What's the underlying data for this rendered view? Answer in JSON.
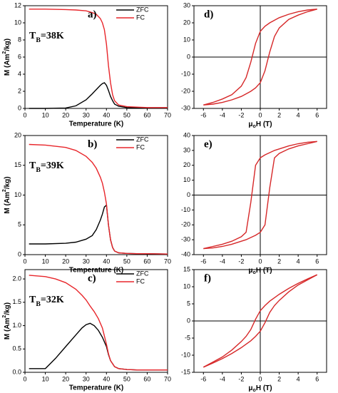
{
  "chart_data": [
    {
      "type": "line",
      "label": "a)",
      "annotation": [
        "T",
        "B",
        "=38K"
      ],
      "xlabel": "Temperature (K)",
      "ylabel": [
        "M (Am",
        "2",
        "/kg)"
      ],
      "legend": "upper right",
      "xlim": [
        0,
        70
      ],
      "xticks": [
        0,
        10,
        20,
        30,
        40,
        50,
        60,
        70
      ],
      "ylim": [
        0,
        12
      ],
      "yticks": [
        0,
        2,
        4,
        6,
        8,
        10,
        12
      ],
      "x": [
        2,
        10,
        20,
        25,
        30,
        33,
        35,
        37,
        38,
        39,
        40,
        41,
        42,
        43,
        44,
        46,
        50,
        55,
        60,
        70
      ],
      "series": [
        {
          "name": "ZFC",
          "color": "#000000",
          "values": [
            0,
            0,
            0.05,
            0.3,
            1.0,
            1.7,
            2.2,
            2.7,
            2.9,
            3.0,
            2.7,
            2.1,
            1.4,
            0.9,
            0.5,
            0.25,
            0.1,
            0.08,
            0.05,
            0.05
          ]
        },
        {
          "name": "FC",
          "color": "#e8262b",
          "values": [
            11.6,
            11.6,
            11.55,
            11.5,
            11.4,
            11.2,
            11.0,
            10.5,
            10.0,
            9.2,
            7.5,
            5.0,
            3.0,
            1.6,
            0.9,
            0.4,
            0.2,
            0.15,
            0.1,
            0.1
          ]
        }
      ]
    },
    {
      "type": "line",
      "label": "b)",
      "annotation": [
        "T",
        "B",
        "=39K"
      ],
      "xlabel": "Temperature (K)",
      "ylabel": [
        "M (Am",
        "2",
        "/kg)"
      ],
      "legend": "upper right",
      "xlim": [
        0,
        70
      ],
      "xticks": [
        0,
        10,
        20,
        30,
        40,
        50,
        60,
        70
      ],
      "ylim": [
        0,
        20
      ],
      "yticks": [
        0,
        5,
        10,
        15,
        20
      ],
      "x": [
        2,
        10,
        20,
        25,
        30,
        33,
        35,
        37,
        38,
        39,
        40,
        41,
        42,
        43,
        44,
        46,
        50,
        55,
        60,
        70
      ],
      "series": [
        {
          "name": "ZFC",
          "color": "#000000",
          "values": [
            1.8,
            1.8,
            1.9,
            2.1,
            2.6,
            3.2,
            4.2,
            5.8,
            6.8,
            8.0,
            8.3,
            5.0,
            2.5,
            1.2,
            0.6,
            0.3,
            0.2,
            0.15,
            0.15,
            0.1
          ]
        },
        {
          "name": "FC",
          "color": "#e8262b",
          "values": [
            18.5,
            18.4,
            18.0,
            17.5,
            16.5,
            15.5,
            14.5,
            13.0,
            12.0,
            10.5,
            8.5,
            5.0,
            2.5,
            1.2,
            0.6,
            0.3,
            0.2,
            0.15,
            0.15,
            0.1
          ]
        }
      ]
    },
    {
      "type": "line",
      "label": "c)",
      "annotation": [
        "T",
        "B",
        "=32K"
      ],
      "xlabel": "Temperature (K)",
      "ylabel": [
        "M (Am",
        "2",
        "/kg)"
      ],
      "legend": "upper right",
      "xlim": [
        0,
        70
      ],
      "xticks": [
        0,
        10,
        20,
        30,
        40,
        50,
        60,
        70
      ],
      "ylim": [
        0,
        2.2
      ],
      "yticks": [
        {
          "value": 0,
          "label": "0.0"
        },
        0.5,
        {
          "value": 1,
          "label": "1.0"
        },
        1.5,
        {
          "value": 2,
          "label": "2.0"
        }
      ],
      "x": [
        2,
        10,
        15,
        20,
        25,
        28,
        30,
        32,
        34,
        36,
        38,
        40,
        41,
        42,
        44,
        46,
        50,
        55,
        60,
        70
      ],
      "series": [
        {
          "name": "ZFC",
          "color": "#000000",
          "values": [
            0.08,
            0.08,
            0.3,
            0.55,
            0.8,
            0.95,
            1.02,
            1.05,
            1.0,
            0.9,
            0.75,
            0.55,
            0.38,
            0.25,
            0.12,
            0.08,
            0.06,
            0.05,
            0.05,
            0.05
          ]
        },
        {
          "name": "FC",
          "color": "#e8262b",
          "values": [
            2.08,
            2.05,
            2.0,
            1.92,
            1.78,
            1.65,
            1.55,
            1.42,
            1.3,
            1.15,
            0.95,
            0.6,
            0.4,
            0.25,
            0.12,
            0.08,
            0.06,
            0.05,
            0.05,
            0.05
          ]
        }
      ]
    },
    {
      "type": "line",
      "label": "d)",
      "xlabel": [
        "μ",
        "o",
        "H (T)"
      ],
      "zero_axes": true,
      "xlim": [
        -7,
        7
      ],
      "xticks": [
        -6,
        -4,
        -2,
        0,
        2,
        4,
        6
      ],
      "ylim": [
        -30,
        30
      ],
      "yticks": [
        -30,
        -20,
        -10,
        0,
        10,
        20,
        30
      ],
      "x": [
        -6,
        -5,
        -4,
        -3,
        -2,
        -1.5,
        -1,
        -0.5,
        0,
        0.5,
        1,
        1.5,
        2,
        3,
        4,
        5,
        6
      ],
      "series": [
        {
          "color": "#d62728",
          "values": [
            -28,
            -26.5,
            -24.5,
            -22,
            -17,
            -12,
            -3,
            8,
            15,
            18,
            20,
            21.5,
            23,
            25,
            26.5,
            27.5,
            28
          ]
        },
        {
          "color": "#d62728",
          "values": [
            -28,
            -27.5,
            -26.5,
            -25,
            -23,
            -21.5,
            -20,
            -18,
            -15,
            -8,
            3,
            12,
            17,
            22,
            24.5,
            26.5,
            28
          ]
        }
      ]
    },
    {
      "type": "line",
      "label": "e)",
      "xlabel": [
        "μ",
        "o",
        "H (T)"
      ],
      "zero_axes": true,
      "xlim": [
        -7,
        7
      ],
      "xticks": [
        -6,
        -4,
        -2,
        0,
        2,
        4,
        6
      ],
      "ylim": [
        -40,
        40
      ],
      "yticks": [
        -40,
        -30,
        -20,
        -10,
        0,
        10,
        20,
        30,
        40
      ],
      "x": [
        -6,
        -5,
        -4,
        -3,
        -2,
        -1.5,
        -1,
        -0.5,
        0,
        0.5,
        1,
        1.5,
        2,
        3,
        4,
        5,
        6
      ],
      "series": [
        {
          "color": "#d62728",
          "values": [
            -36,
            -34.5,
            -33,
            -31,
            -28,
            -25,
            -5,
            20,
            25,
            27,
            28.5,
            30,
            31,
            33,
            34.5,
            35.5,
            36
          ]
        },
        {
          "color": "#d62728",
          "values": [
            -36,
            -35.5,
            -34.5,
            -33,
            -31,
            -30,
            -28.5,
            -27,
            -25,
            -20,
            5,
            25,
            28,
            31,
            33,
            34.5,
            36
          ]
        }
      ]
    },
    {
      "type": "line",
      "label": "f)",
      "xlabel": [
        "μ",
        "o",
        "H (T)"
      ],
      "zero_axes": true,
      "xlim": [
        -7,
        7
      ],
      "xticks": [
        -6,
        -4,
        -2,
        0,
        2,
        4,
        6
      ],
      "ylim": [
        -15,
        15
      ],
      "yticks": [
        -15,
        -10,
        -5,
        0,
        5,
        10,
        15
      ],
      "x": [
        -6,
        -5,
        -4,
        -3,
        -2,
        -1.5,
        -1,
        -0.5,
        0,
        0.5,
        1,
        1.5,
        2,
        3,
        4,
        5,
        6
      ],
      "series": [
        {
          "color": "#d62728",
          "values": [
            -13.5,
            -12,
            -10.5,
            -8.5,
            -6,
            -4.5,
            -2.5,
            0.5,
            3,
            4.5,
            5.8,
            6.8,
            7.8,
            9.5,
            11,
            12.3,
            13.5
          ]
        },
        {
          "color": "#d62728",
          "values": [
            -13.5,
            -12.3,
            -11,
            -9.5,
            -7.8,
            -6.8,
            -5.8,
            -4.5,
            -3,
            -0.5,
            2.5,
            4.5,
            6,
            8.5,
            10.5,
            12,
            13.5
          ]
        }
      ]
    }
  ]
}
